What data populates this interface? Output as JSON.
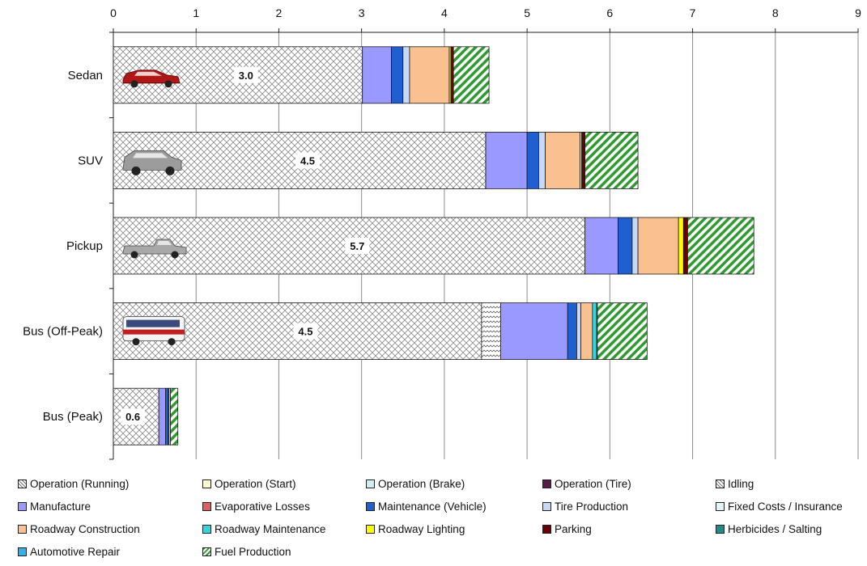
{
  "chart_data": {
    "type": "bar",
    "orientation": "horizontal",
    "stacked": true,
    "xlim": [
      0,
      9
    ],
    "x_ticks": [
      "0",
      "1",
      "2",
      "3",
      "4",
      "5",
      "6",
      "7",
      "8",
      "9"
    ],
    "grid": true,
    "legend_position": "bottom",
    "categories": [
      "Sedan",
      "SUV",
      "Pickup",
      "Bus (Off-Peak)",
      "Bus (Peak)"
    ],
    "bar_labels": [
      "3.0",
      "4.5",
      "5.7",
      "4.5",
      "0.6"
    ],
    "series": [
      {
        "name": "Operation (Running)",
        "color": "#ffffff",
        "pattern": "crosshatch",
        "values": [
          3.01,
          4.5,
          5.7,
          4.45,
          0.55
        ]
      },
      {
        "name": "Operation (Start)",
        "color": "#ffffcc",
        "values": [
          0,
          0,
          0,
          0,
          0
        ]
      },
      {
        "name": "Operation (Brake)",
        "color": "#cdeff5",
        "values": [
          0,
          0,
          0,
          0,
          0
        ]
      },
      {
        "name": "Operation (Tire)",
        "color": "#5a1a4a",
        "values": [
          0,
          0,
          0,
          0,
          0
        ]
      },
      {
        "name": "Idling",
        "color": "#ffffff",
        "pattern": "zigzag",
        "values": [
          0,
          0,
          0,
          0.23,
          0
        ]
      },
      {
        "name": "Manufacture",
        "color": "#9999ff",
        "values": [
          0.35,
          0.5,
          0.4,
          0.81,
          0.08
        ]
      },
      {
        "name": "Evaporative Losses",
        "color": "#e06060",
        "values": [
          0,
          0,
          0,
          0,
          0
        ]
      },
      {
        "name": "Maintenance (Vehicle)",
        "color": "#1f5fd0",
        "values": [
          0.14,
          0.14,
          0.17,
          0.11,
          0.03
        ]
      },
      {
        "name": "Tire Production",
        "color": "#c8d8f8",
        "values": [
          0.08,
          0.08,
          0.07,
          0.05,
          0.01
        ]
      },
      {
        "name": "Fixed Costs / Insurance",
        "color": "#e0f5f5",
        "values": [
          0,
          0,
          0,
          0,
          0
        ]
      },
      {
        "name": "Roadway Construction",
        "color": "#fac090",
        "values": [
          0.48,
          0.42,
          0.49,
          0.14,
          0.02
        ]
      },
      {
        "name": "Roadway Maintenance",
        "color": "#33d5e0",
        "values": [
          0,
          0,
          0,
          0.05,
          0
        ]
      },
      {
        "name": "Roadway Lighting",
        "color": "#ffff00",
        "values": [
          0.02,
          0.02,
          0.06,
          0.01,
          0
        ]
      },
      {
        "name": "Parking",
        "color": "#6a0000",
        "values": [
          0.03,
          0.04,
          0.05,
          0,
          0
        ]
      },
      {
        "name": "Herbicides / Salting",
        "color": "#1e8c8c",
        "values": [
          0,
          0,
          0,
          0,
          0
        ]
      },
      {
        "name": "Automotive Repair",
        "color": "#33b0e6",
        "values": [
          0,
          0,
          0,
          0,
          0
        ]
      },
      {
        "name": "Fuel Production",
        "color": "#2f9a2f",
        "pattern": "diagonal",
        "values": [
          0.43,
          0.64,
          0.8,
          0.6,
          0.09
        ]
      }
    ]
  }
}
